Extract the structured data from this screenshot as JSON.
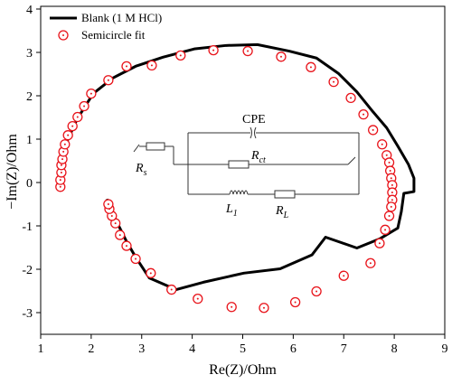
{
  "chart_data": {
    "type": "nyquist",
    "xlabel": "Re(Z)/Ohm",
    "ylabel": "−Im(Z)/Ohm",
    "xlim": [
      1,
      9
    ],
    "xticks": [
      1,
      2,
      3,
      4,
      5,
      6,
      7,
      8,
      9
    ],
    "ylim": [
      -3.5,
      4
    ],
    "yticks": [
      -3,
      -2,
      -1,
      0,
      1,
      2,
      3,
      4
    ],
    "legend": "top-left",
    "series": [
      {
        "name": "Blank (1 M HCl)",
        "kind": "line",
        "color": "#000000",
        "x": [
          1.38,
          1.39,
          1.48,
          1.72,
          2.04,
          2.43,
          2.88,
          3.42,
          4.04,
          4.67,
          5.29,
          5.92,
          6.46,
          6.9,
          7.26,
          7.58,
          7.85,
          8.07,
          8.28,
          8.39,
          8.39,
          8.19,
          8.14,
          8.07,
          7.71,
          7.26,
          6.64,
          6.37,
          5.74,
          5.02,
          4.22,
          3.68,
          3.15,
          2.88,
          2.7,
          2.52,
          2.38,
          2.31
        ],
        "y": [
          -0.17,
          0.21,
          0.84,
          1.46,
          2.05,
          2.41,
          2.68,
          2.89,
          3.08,
          3.16,
          3.18,
          3.03,
          2.87,
          2.51,
          2.09,
          1.63,
          1.26,
          0.84,
          0.42,
          0.1,
          -0.21,
          -0.25,
          -0.67,
          -1.05,
          -1.3,
          -1.51,
          -1.26,
          -1.67,
          -1.99,
          -2.09,
          -2.3,
          -2.47,
          -2.2,
          -1.72,
          -1.36,
          -0.94,
          -0.59,
          -0.38
        ]
      },
      {
        "name": "Semicircle fit",
        "kind": "scatter",
        "color": "#e8141b",
        "x": [
          1.39,
          1.39,
          1.41,
          1.41,
          1.43,
          1.45,
          1.48,
          1.54,
          1.63,
          1.73,
          1.86,
          2.0,
          2.34,
          2.7,
          3.2,
          3.77,
          4.42,
          5.1,
          5.76,
          6.35,
          6.8,
          7.14,
          7.39,
          7.58,
          7.76,
          7.85,
          7.9,
          7.92,
          7.94,
          7.96,
          7.96,
          7.96,
          7.94,
          7.9,
          7.82,
          7.71,
          7.53,
          7.0,
          6.46,
          6.04,
          5.42,
          4.78,
          4.11,
          3.59,
          3.18,
          2.88,
          2.7,
          2.57,
          2.48,
          2.41,
          2.36,
          2.34
        ],
        "y": [
          -0.1,
          0.06,
          0.23,
          0.4,
          0.54,
          0.71,
          0.88,
          1.09,
          1.3,
          1.51,
          1.76,
          2.05,
          2.36,
          2.68,
          2.7,
          2.93,
          3.05,
          3.03,
          2.9,
          2.66,
          2.32,
          1.95,
          1.57,
          1.21,
          0.88,
          0.63,
          0.46,
          0.27,
          0.1,
          -0.06,
          -0.23,
          -0.4,
          -0.56,
          -0.77,
          -1.09,
          -1.4,
          -1.86,
          -2.15,
          -2.51,
          -2.76,
          -2.89,
          -2.87,
          -2.68,
          -2.47,
          -2.09,
          -1.76,
          -1.46,
          -1.21,
          -0.94,
          -0.77,
          -0.61,
          -0.5
        ]
      }
    ],
    "circuit_labels": [
      {
        "text": "CPE"
      },
      {
        "text": "R",
        "subscript": "ct"
      },
      {
        "text": "R",
        "subscript": "s"
      },
      {
        "text": "L",
        "subscript": "1"
      },
      {
        "text": "R",
        "subscript": "L"
      }
    ]
  }
}
